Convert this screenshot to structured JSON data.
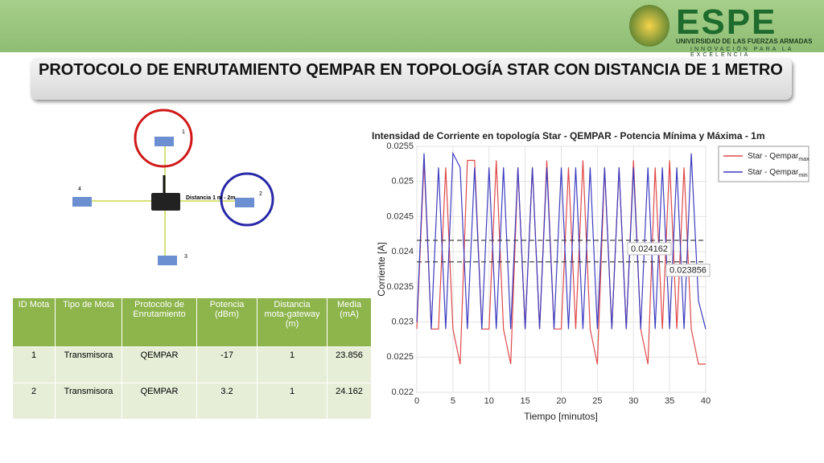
{
  "header": {
    "logo": "ESPE",
    "university": "UNIVERSIDAD DE LAS FUERZAS ARMADAS",
    "motto": "INNOVACIÓN PARA LA EXCELENCIA"
  },
  "title": "PROTOCOLO DE ENRUTAMIENTO QEMPAR EN TOPOLOGÍA STAR CON DISTANCIA DE 1 METRO",
  "diagram": {
    "nodes": [
      {
        "label": "1"
      },
      {
        "label": "2"
      },
      {
        "label": "3"
      },
      {
        "label": "4"
      }
    ],
    "link_label": "Distancia 1 m - 2m"
  },
  "table": {
    "headers": [
      "ID Mota",
      "Tipo de Mota",
      "Protocolo de Enrutamiento",
      "Potencia (dBm)",
      "Distancia mota-gateway (m)",
      "Media (mA)"
    ],
    "rows": [
      [
        "1",
        "Transmisora",
        "QEMPAR",
        "-17",
        "1",
        "23.856"
      ],
      [
        "2",
        "Transmisora",
        "QEMPAR",
        "3.2",
        "1",
        "24.162"
      ]
    ]
  },
  "chart_data": {
    "type": "line",
    "title": "Intensidad de Corriente en topología Star - QEMPAR - Potencia Mínima y Máxima - 1m",
    "xlabel": "Tiempo [minutos]",
    "ylabel": "Corriente [A]",
    "x": [
      0,
      1,
      2,
      3,
      4,
      5,
      6,
      7,
      8,
      9,
      10,
      11,
      12,
      13,
      14,
      15,
      16,
      17,
      18,
      19,
      20,
      21,
      22,
      23,
      24,
      25,
      26,
      27,
      28,
      29,
      30,
      31,
      32,
      33,
      34,
      35,
      36,
      37,
      38,
      39,
      40
    ],
    "series": [
      {
        "name": "Star - Qempar",
        "subscript": "max",
        "color": "#e04848",
        "values": [
          0.0229,
          0.0253,
          0.0229,
          0.0229,
          0.0252,
          0.0229,
          0.0224,
          0.0253,
          0.0253,
          0.0229,
          0.0229,
          0.0253,
          0.0229,
          0.0224,
          0.0252,
          0.0229,
          0.0252,
          0.0229,
          0.0253,
          0.0229,
          0.0229,
          0.0252,
          0.0229,
          0.0253,
          0.0229,
          0.0224,
          0.0252,
          0.0229,
          0.0252,
          0.0229,
          0.0253,
          0.0229,
          0.0224,
          0.0252,
          0.0229,
          0.0253,
          0.0229,
          0.0252,
          0.0229,
          0.0224,
          0.0224
        ]
      },
      {
        "name": "Star - Qempar",
        "subscript": "min",
        "color": "#3c3cc0",
        "values": [
          0.023,
          0.0254,
          0.0229,
          0.0252,
          0.0229,
          0.0254,
          0.0252,
          0.0229,
          0.0252,
          0.0229,
          0.0252,
          0.0229,
          0.0252,
          0.0229,
          0.0252,
          0.0229,
          0.0252,
          0.0229,
          0.0252,
          0.0229,
          0.0252,
          0.0229,
          0.0252,
          0.0229,
          0.0252,
          0.0229,
          0.0252,
          0.0229,
          0.0252,
          0.0229,
          0.0252,
          0.0229,
          0.0252,
          0.0229,
          0.0252,
          0.0229,
          0.0252,
          0.0229,
          0.0254,
          0.0233,
          0.0229
        ]
      }
    ],
    "reference_lines": [
      0.024162,
      0.023856
    ],
    "xlim": [
      0,
      40
    ],
    "xticks": [
      0,
      5,
      10,
      15,
      20,
      25,
      30,
      35,
      40
    ],
    "ylim": [
      0.022,
      0.0255
    ],
    "yticks": [
      0.022,
      0.0225,
      0.023,
      0.0235,
      0.024,
      0.0245,
      0.025,
      0.0255
    ],
    "grid": true,
    "legend": "upper right"
  }
}
